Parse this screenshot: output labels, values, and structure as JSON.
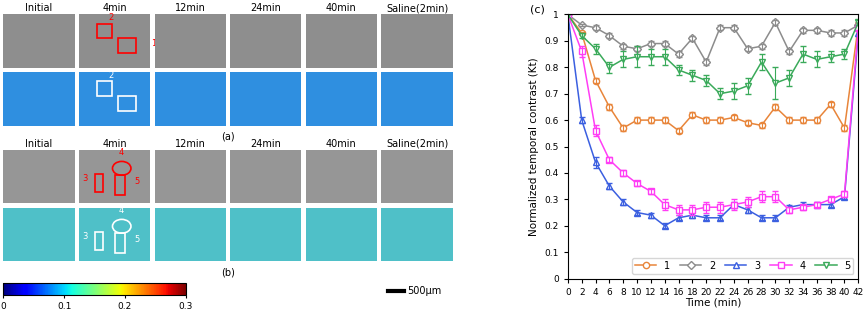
{
  "panels": {
    "columns": [
      "Initial",
      "4min",
      "12min",
      "24min",
      "40min",
      "Saline(2min)"
    ],
    "rows": [
      {
        "label": "(a)",
        "regions": [
          "2",
          "1"
        ]
      },
      {
        "label": "(b)",
        "regions": [
          "4",
          "3",
          "5"
        ]
      }
    ],
    "colorbar": {
      "range": [
        0,
        0.3
      ],
      "ticks": [
        0,
        0.1,
        0.2,
        0.3
      ]
    },
    "scale_bar": "500μm"
  },
  "chart_data": {
    "type": "line",
    "title": "(c)",
    "x_label": "Time (min)",
    "y_label": "Normalized temporal contrast (Kt)",
    "x": [
      0,
      2,
      4,
      6,
      8,
      10,
      12,
      14,
      16,
      18,
      20,
      22,
      24,
      26,
      28,
      30,
      32,
      34,
      36,
      38,
      40,
      42
    ],
    "xlim": [
      0,
      42
    ],
    "xticks": [
      0,
      2,
      4,
      6,
      8,
      10,
      12,
      14,
      16,
      18,
      20,
      22,
      24,
      26,
      28,
      30,
      32,
      34,
      36,
      38,
      40,
      42
    ],
    "ylim": [
      0,
      1
    ],
    "yticks": [
      0,
      0.1,
      0.2,
      0.3,
      0.4,
      0.5,
      0.6,
      0.7,
      0.8,
      0.9,
      1
    ],
    "legend": "lower right",
    "series": [
      {
        "name": "1",
        "color": "#e8853a",
        "marker": "circle",
        "values": [
          1,
          0.93,
          0.75,
          0.65,
          0.57,
          0.6,
          0.6,
          0.6,
          0.56,
          0.62,
          0.6,
          0.6,
          0.61,
          0.59,
          0.58,
          0.65,
          0.6,
          0.6,
          0.6,
          0.66,
          0.57,
          0.96
        ],
        "errors": [
          0,
          0.005,
          0.01,
          0.01,
          0.01,
          0.01,
          0.01,
          0.01,
          0.01,
          0.01,
          0.01,
          0.01,
          0.01,
          0.01,
          0.01,
          0.01,
          0.01,
          0.01,
          0.01,
          0.01,
          0.01,
          0.01
        ]
      },
      {
        "name": "2",
        "color": "#8c8c8c",
        "marker": "diamond",
        "values": [
          1,
          0.96,
          0.95,
          0.92,
          0.88,
          0.87,
          0.89,
          0.89,
          0.85,
          0.91,
          0.82,
          0.95,
          0.95,
          0.87,
          0.88,
          0.97,
          0.86,
          0.94,
          0.94,
          0.93,
          0.93,
          0.96
        ],
        "errors": [
          0,
          0.005,
          0.01,
          0.01,
          0.01,
          0.01,
          0.01,
          0.01,
          0.01,
          0.01,
          0.01,
          0.01,
          0.01,
          0.01,
          0.01,
          0.01,
          0.01,
          0.01,
          0.01,
          0.01,
          0.01,
          0.01
        ]
      },
      {
        "name": "3",
        "color": "#3b5fe0",
        "marker": "triangle_up",
        "values": [
          1,
          0.6,
          0.44,
          0.35,
          0.29,
          0.25,
          0.24,
          0.2,
          0.23,
          0.24,
          0.23,
          0.23,
          0.28,
          0.26,
          0.23,
          0.23,
          0.27,
          0.28,
          0.28,
          0.28,
          0.31,
          0.93
        ],
        "errors": [
          0,
          0.01,
          0.02,
          0.01,
          0.01,
          0.01,
          0.01,
          0.01,
          0.01,
          0.01,
          0.01,
          0.01,
          0.01,
          0.01,
          0.01,
          0.01,
          0.01,
          0.01,
          0.01,
          0.01,
          0.01,
          0.01
        ]
      },
      {
        "name": "4",
        "color": "#ff3df5",
        "marker": "square",
        "values": [
          1,
          0.86,
          0.56,
          0.45,
          0.4,
          0.36,
          0.33,
          0.28,
          0.26,
          0.26,
          0.27,
          0.27,
          0.28,
          0.29,
          0.31,
          0.31,
          0.26,
          0.27,
          0.28,
          0.3,
          0.32,
          0.95
        ],
        "errors": [
          0,
          0.02,
          0.02,
          0.01,
          0.01,
          0.01,
          0.01,
          0.02,
          0.02,
          0.02,
          0.02,
          0.02,
          0.02,
          0.02,
          0.02,
          0.02,
          0.01,
          0.01,
          0.01,
          0.01,
          0.01,
          0.01
        ]
      },
      {
        "name": "5",
        "color": "#3aaa5a",
        "marker": "triangle_down",
        "values": [
          1,
          0.92,
          0.87,
          0.8,
          0.83,
          0.84,
          0.84,
          0.84,
          0.79,
          0.77,
          0.75,
          0.7,
          0.71,
          0.73,
          0.82,
          0.74,
          0.76,
          0.85,
          0.83,
          0.84,
          0.85,
          0.97
        ],
        "errors": [
          0,
          0.01,
          0.02,
          0.02,
          0.03,
          0.04,
          0.03,
          0.03,
          0.02,
          0.02,
          0.02,
          0.02,
          0.03,
          0.03,
          0.03,
          0.06,
          0.03,
          0.03,
          0.03,
          0.02,
          0.02,
          0.01
        ]
      }
    ]
  }
}
